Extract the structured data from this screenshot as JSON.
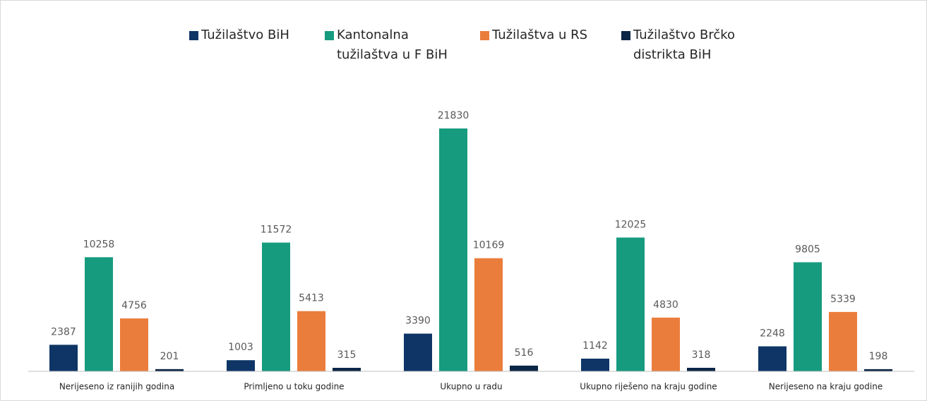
{
  "chart_data": {
    "type": "bar",
    "categories": [
      "Nerijeseno iz ranijih godina",
      "Primljeno u toku godine",
      "Ukupno u radu",
      "Ukupno riješeno na kraju godine",
      "Nerijeseno na kraju godine"
    ],
    "series": [
      {
        "name": "Tužilaštvo BiH",
        "color": "#0e3566",
        "values": [
          2387,
          1003,
          3390,
          1142,
          2248
        ]
      },
      {
        "name": "Kantonalna tužilaštva u F BiH",
        "color": "#169b7f",
        "values": [
          10258,
          11572,
          21830,
          12025,
          9805
        ]
      },
      {
        "name": "Tužilaštva u RS",
        "color": "#eb7d3c",
        "values": [
          4756,
          5413,
          10169,
          4830,
          5339
        ]
      },
      {
        "name": "Tužilaštvo Brčko distrikta BiH",
        "color": "#0b2545",
        "values": [
          201,
          315,
          516,
          318,
          198
        ]
      }
    ],
    "ylim": [
      0,
      25000
    ]
  }
}
